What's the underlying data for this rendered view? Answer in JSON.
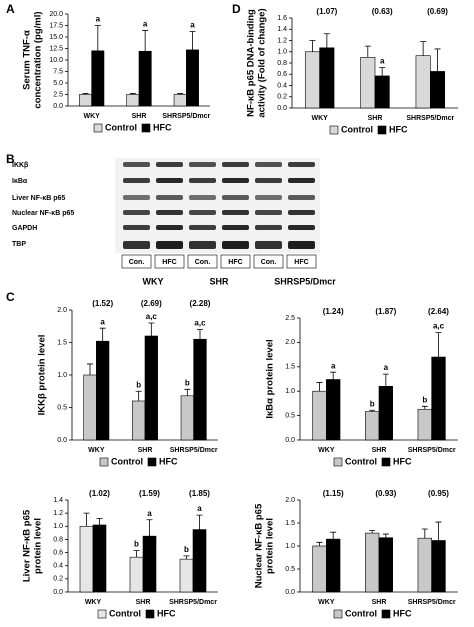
{
  "panel_labels": [
    "A",
    "B",
    "C",
    "D"
  ],
  "blot": {
    "rows": [
      "IKKβ",
      "IκBα",
      "Liver NF-κB p65",
      "Nuclear NF-κB p65",
      "GAPDH",
      "TBP"
    ],
    "lanes": [
      "Con.",
      "HFC",
      "Con.",
      "HFC",
      "Con.",
      "HFC"
    ],
    "groups": [
      "WKY",
      "SHR",
      "SHRSP5/Dmcr"
    ]
  },
  "chart_data": [
    {
      "type": "bar",
      "ylabel": [
        "Serum TNF-α",
        "concentration (pg/ml)"
      ],
      "categories": [
        "WKY",
        "SHR",
        "SHRSP5/Dmcr"
      ],
      "series": [
        {
          "name": "Control",
          "color": "#d9d9d9",
          "values": [
            2.5,
            2.5,
            2.5
          ],
          "errors": [
            0.2,
            0.2,
            0.2
          ],
          "letters": [
            null,
            null,
            null
          ]
        },
        {
          "name": "HFC",
          "color": "#000000",
          "values": [
            12,
            11.9,
            12.2
          ],
          "errors": [
            5.5,
            4.5,
            4
          ],
          "letters": [
            "a",
            "a",
            "a"
          ]
        }
      ],
      "annotations": [],
      "ylim": [
        0,
        20
      ],
      "yticks": [
        {
          "value": 0,
          "label": "0.0"
        },
        {
          "value": 2.5,
          "label": "2.5"
        },
        {
          "value": 5,
          "label": "5.0"
        },
        {
          "value": 7.5,
          "label": "7.5"
        },
        {
          "value": 10,
          "label": "10.0"
        },
        {
          "value": 12.5,
          "label": "12.5"
        },
        {
          "value": 15,
          "label": "15.0"
        },
        {
          "value": 17.5,
          "label": "17.5"
        },
        {
          "value": 20,
          "label": "20.0"
        }
      ]
    },
    {
      "type": "bar",
      "ylabel": [
        "NF-κB p65 DNA-binding",
        "activity (Fold of change)"
      ],
      "categories": [
        "WKY",
        "SHR",
        "SHRSP5/Dmcr"
      ],
      "series": [
        {
          "name": "Control",
          "color": "#d9d9d9",
          "values": [
            1.0,
            0.9,
            0.93
          ],
          "errors": [
            0.2,
            0.2,
            0.25
          ],
          "letters": [
            null,
            null,
            null
          ]
        },
        {
          "name": "HFC",
          "color": "#000000",
          "values": [
            1.07,
            0.57,
            0.65
          ],
          "errors": [
            0.25,
            0.15,
            0.4
          ],
          "letters": [
            null,
            "a",
            null
          ]
        }
      ],
      "annotations": [
        "(1.07)",
        "(0.63)",
        "(0.69)"
      ],
      "ylim": [
        0,
        1.6
      ],
      "yticks": [
        {
          "value": 0,
          "label": "0.0"
        },
        {
          "value": 0.2,
          "label": "0.2"
        },
        {
          "value": 0.4,
          "label": "0.4"
        },
        {
          "value": 0.6,
          "label": "0.6"
        },
        {
          "value": 0.8,
          "label": "0.8"
        },
        {
          "value": 1,
          "label": "1.0"
        },
        {
          "value": 1.2,
          "label": "1.2"
        },
        {
          "value": 1.4,
          "label": "1.4"
        },
        {
          "value": 1.6,
          "label": "1.6"
        }
      ]
    },
    {
      "type": "bar",
      "ylabel": [
        "IKKβ protein level"
      ],
      "categories": [
        "WKY",
        "SHR",
        "SHRSP5/Dmcr"
      ],
      "series": [
        {
          "name": "Control",
          "color": "#c8c8c8",
          "values": [
            1.0,
            0.6,
            0.68
          ],
          "errors": [
            0.17,
            0.15,
            0.1
          ],
          "letters": [
            null,
            "b",
            "b"
          ]
        },
        {
          "name": "HFC",
          "color": "#000000",
          "values": [
            1.52,
            1.6,
            1.55
          ],
          "errors": [
            0.2,
            0.2,
            0.15
          ],
          "letters": [
            "a",
            "a,c",
            "a,c"
          ]
        }
      ],
      "annotations": [
        "(1.52)",
        "(2.69)",
        "(2.28)"
      ],
      "ylim": [
        0,
        2
      ],
      "yticks": [
        {
          "value": 0,
          "label": "0.0"
        },
        {
          "value": 0.5,
          "label": "0.5"
        },
        {
          "value": 1,
          "label": "1.0"
        },
        {
          "value": 1.5,
          "label": "1.5"
        },
        {
          "value": 2,
          "label": "2.0"
        }
      ]
    },
    {
      "type": "bar",
      "ylabel": [
        "IκBα protein level"
      ],
      "categories": [
        "WKY",
        "SHR",
        "SHRSP5/Dmcr"
      ],
      "series": [
        {
          "name": "Control",
          "color": "#c8c8c8",
          "values": [
            1.0,
            0.58,
            0.63
          ],
          "errors": [
            0.18,
            0.03,
            0.06
          ],
          "letters": [
            null,
            "b",
            "b"
          ]
        },
        {
          "name": "HFC",
          "color": "#000000",
          "values": [
            1.24,
            1.1,
            1.7
          ],
          "errors": [
            0.15,
            0.25,
            0.5
          ],
          "letters": [
            "a",
            "a",
            "a,c"
          ]
        }
      ],
      "annotations": [
        "(1.24)",
        "(1.87)",
        "(2.64)"
      ],
      "ylim": [
        0,
        2.5
      ],
      "yticks": [
        {
          "value": 0,
          "label": "0.0"
        },
        {
          "value": 0.5,
          "label": "0.5"
        },
        {
          "value": 1,
          "label": "1.0"
        },
        {
          "value": 1.5,
          "label": "1.5"
        },
        {
          "value": 2,
          "label": "2.0"
        },
        {
          "value": 2.5,
          "label": "2.5"
        }
      ]
    },
    {
      "type": "bar",
      "ylabel": [
        "Liver NF-κB p65",
        "protein level"
      ],
      "categories": [
        "WKY",
        "SHR",
        "SHRSP5/Dmcr"
      ],
      "series": [
        {
          "name": "Control",
          "color": "#e6e6e6",
          "values": [
            1.0,
            0.53,
            0.5
          ],
          "errors": [
            0.2,
            0.1,
            0.05
          ],
          "letters": [
            null,
            "b",
            "b"
          ]
        },
        {
          "name": "HFC",
          "color": "#000000",
          "values": [
            1.02,
            0.85,
            0.95
          ],
          "errors": [
            0.1,
            0.25,
            0.22
          ],
          "letters": [
            null,
            "a",
            "a"
          ]
        }
      ],
      "annotations": [
        "(1.02)",
        "(1.59)",
        "(1.85)"
      ],
      "ylim": [
        0,
        1.4
      ],
      "yticks": [
        {
          "value": 0,
          "label": "0.0"
        },
        {
          "value": 0.2,
          "label": "0.2"
        },
        {
          "value": 0.4,
          "label": "0.4"
        },
        {
          "value": 0.6,
          "label": "0.6"
        },
        {
          "value": 0.8,
          "label": "0.8"
        },
        {
          "value": 1,
          "label": "1.0"
        },
        {
          "value": 1.2,
          "label": "1.2"
        },
        {
          "value": 1.4,
          "label": "1.4"
        }
      ]
    },
    {
      "type": "bar",
      "ylabel": [
        "Nuclear NF-κB p65",
        "protein level"
      ],
      "categories": [
        "WKY",
        "SHR",
        "SHRSP5/Dmcr"
      ],
      "series": [
        {
          "name": "Control",
          "color": "#c8c8c8",
          "values": [
            1.0,
            1.28,
            1.17
          ],
          "errors": [
            0.08,
            0.06,
            0.2
          ],
          "letters": [
            null,
            null,
            null
          ]
        },
        {
          "name": "HFC",
          "color": "#000000",
          "values": [
            1.15,
            1.18,
            1.12
          ],
          "errors": [
            0.15,
            0.08,
            0.4
          ],
          "letters": [
            null,
            null,
            null
          ]
        }
      ],
      "annotations": [
        "(1.15)",
        "(0.93)",
        "(0.95)"
      ],
      "ylim": [
        0,
        2
      ],
      "yticks": [
        {
          "value": 0,
          "label": "0.0"
        },
        {
          "value": 0.5,
          "label": "0.5"
        },
        {
          "value": 1,
          "label": "1.0"
        },
        {
          "value": 1.5,
          "label": "1.5"
        },
        {
          "value": 2,
          "label": "2.0"
        }
      ]
    }
  ]
}
